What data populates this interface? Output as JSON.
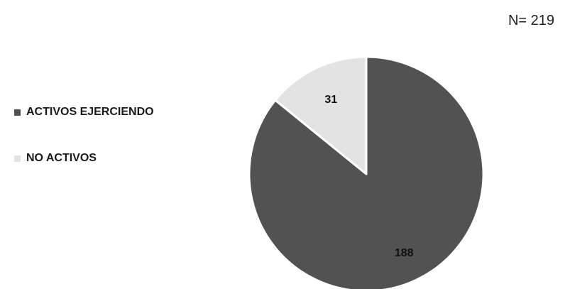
{
  "sample_size": "N= 219",
  "chart_data": {
    "type": "pie",
    "title": "",
    "categories": [
      "ACTIVOS EJERCIENDO",
      "NO ACTIVOS"
    ],
    "values": [
      188,
      31
    ],
    "colors": [
      "#525252",
      "#e3e3e3"
    ],
    "data_labels": [
      "188",
      "31"
    ],
    "legend_position": "left",
    "start": "top",
    "direction": "clockwise"
  }
}
